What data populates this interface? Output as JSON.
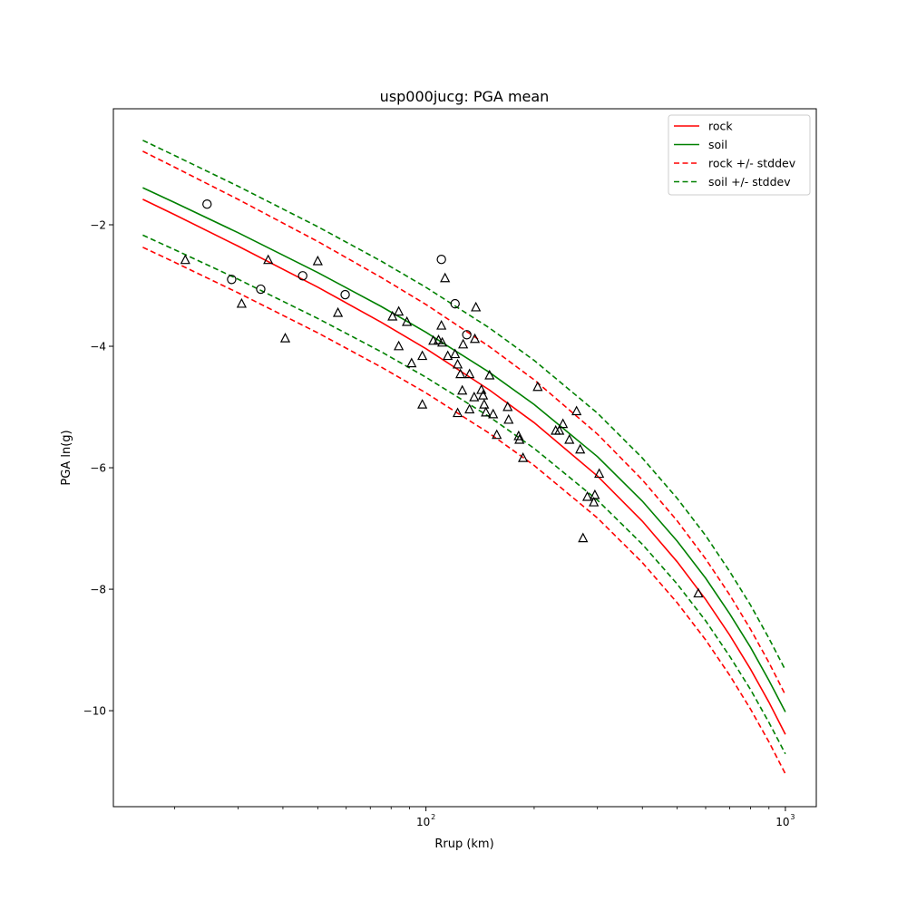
{
  "chart_data": {
    "type": "scatter",
    "title": "usp000jucg: PGA mean",
    "xlabel": "Rrup (km)",
    "ylabel": "PGA ln(g)",
    "xscale": "log",
    "xlim": [
      13.5,
      1219
    ],
    "ylim": [
      -11.58,
      -0.09
    ],
    "xticks": [
      {
        "value": 100,
        "label": "10",
        "sup": "2"
      },
      {
        "value": 1000,
        "label": "10",
        "sup": "3"
      }
    ],
    "xminor": [
      20,
      30,
      40,
      50,
      60,
      70,
      80,
      90,
      200,
      300,
      400,
      500,
      600,
      700,
      800,
      900
    ],
    "yticks": [
      {
        "value": -2,
        "label": "−2"
      },
      {
        "value": -4,
        "label": "−4"
      },
      {
        "value": -6,
        "label": "−6"
      },
      {
        "value": -8,
        "label": "−8"
      },
      {
        "value": -10,
        "label": "−10"
      }
    ],
    "grid": false,
    "legend_position": "top-right",
    "curve_x": [
      16.3,
      20,
      30,
      50,
      75,
      100,
      150,
      200,
      300,
      400,
      500,
      600,
      700,
      800,
      900,
      1000
    ],
    "series": [
      {
        "name": "rock",
        "color": "#ff0000",
        "mean": [
          -1.58,
          -1.835,
          -2.35,
          -3.027,
          -3.603,
          -4.04,
          -4.718,
          -5.257,
          -6.137,
          -6.88,
          -7.548,
          -8.168,
          -8.755,
          -9.317,
          -9.861,
          -10.39
        ],
        "stddev": [
          0.79,
          0.783,
          0.769,
          0.752,
          0.738,
          0.728,
          0.714,
          0.705,
          0.691,
          0.681,
          0.674,
          0.667,
          0.662,
          0.657,
          0.653,
          0.65
        ]
      },
      {
        "name": "soil",
        "color": "#008000",
        "mean": [
          -1.39,
          -1.635,
          -2.13,
          -2.787,
          -3.343,
          -3.77,
          -4.428,
          -4.957,
          -5.817,
          -6.55,
          -7.208,
          -7.818,
          -8.405,
          -8.957,
          -9.501,
          -10.02
        ],
        "stddev": [
          0.78,
          0.775,
          0.766,
          0.755,
          0.746,
          0.74,
          0.731,
          0.725,
          0.716,
          0.71,
          0.705,
          0.701,
          0.698,
          0.695,
          0.692,
          0.69
        ]
      }
    ],
    "legend": [
      "rock",
      "soil",
      "rock +/- stddev",
      "soil +/- stddev"
    ],
    "observations_circle": [
      [
        24.6,
        -1.66
      ],
      [
        28.8,
        -2.9
      ],
      [
        34.7,
        -3.06
      ],
      [
        45.4,
        -2.84
      ],
      [
        59.6,
        -3.15
      ],
      [
        110.4,
        -2.57
      ],
      [
        120.5,
        -3.3
      ],
      [
        129.9,
        -3.81
      ]
    ],
    "observations_triangle": [
      [
        21.4,
        -2.58
      ],
      [
        30.7,
        -3.3
      ],
      [
        36.4,
        -2.58
      ],
      [
        40.6,
        -3.87
      ],
      [
        50.0,
        -2.6
      ],
      [
        56.9,
        -3.45
      ],
      [
        80.7,
        -3.51
      ],
      [
        84.0,
        -3.43
      ],
      [
        88.5,
        -3.6
      ],
      [
        84.0,
        -4.0
      ],
      [
        91.2,
        -4.28
      ],
      [
        104.8,
        -3.91
      ],
      [
        108.4,
        -3.9
      ],
      [
        110.4,
        -3.66
      ],
      [
        111.0,
        -3.94
      ],
      [
        113.0,
        -2.88
      ],
      [
        115.0,
        -4.16
      ],
      [
        120.5,
        -4.13
      ],
      [
        122.5,
        -4.3
      ],
      [
        124.7,
        -4.46
      ],
      [
        126.2,
        -4.73
      ],
      [
        126.9,
        -3.97
      ],
      [
        132.2,
        -4.46
      ],
      [
        132.2,
        -5.04
      ],
      [
        136.2,
        -4.84
      ],
      [
        137.7,
        -3.36
      ],
      [
        136.8,
        -3.88
      ],
      [
        142.6,
        -4.72
      ],
      [
        144.2,
        -4.81
      ],
      [
        145.2,
        -4.96
      ],
      [
        146.8,
        -5.09
      ],
      [
        150.3,
        -4.48
      ],
      [
        153.8,
        -5.12
      ],
      [
        157.4,
        -5.46
      ],
      [
        168.8,
        -5.0
      ],
      [
        169.8,
        -5.21
      ],
      [
        181.1,
        -5.48
      ],
      [
        182.0,
        -5.54
      ],
      [
        186.2,
        -5.84
      ],
      [
        204.6,
        -4.67
      ],
      [
        229.6,
        -5.39
      ],
      [
        235.0,
        -5.39
      ],
      [
        240.5,
        -5.28
      ],
      [
        250.6,
        -5.54
      ],
      [
        262.4,
        -5.07
      ],
      [
        268.6,
        -5.7
      ],
      [
        281.2,
        -6.48
      ],
      [
        293.1,
        -6.57
      ],
      [
        295.1,
        -6.45
      ],
      [
        303.4,
        -6.1
      ],
      [
        273.5,
        -7.16
      ],
      [
        572.5,
        -8.07
      ],
      [
        97.7,
        -4.16
      ],
      [
        97.7,
        -4.96
      ],
      [
        122.5,
        -5.1
      ]
    ]
  }
}
